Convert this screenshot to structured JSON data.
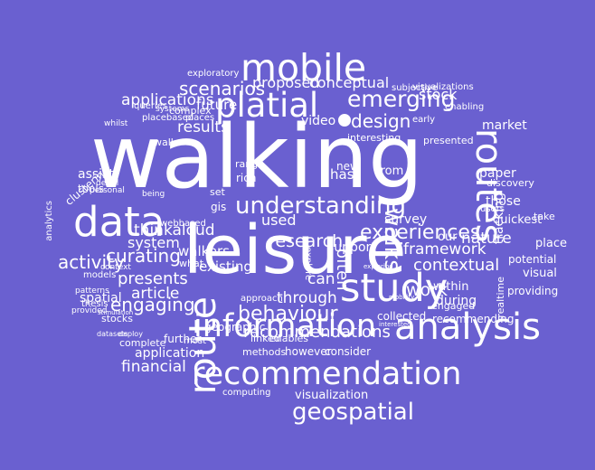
{
  "background_color": "#6a60d0",
  "text_color": "#ffffff",
  "words": [
    "walking",
    "leisure",
    "mobile",
    "platial",
    "data",
    "information",
    "analysis",
    "recommendation",
    "route",
    "study",
    "routes",
    "understanding",
    "scenarios",
    "emerging",
    "walks",
    "geospatial",
    "applications",
    "results",
    "proposed",
    "conceptual",
    "design",
    "experiences",
    "framework",
    "behaviour",
    "recommendations",
    "through",
    "research",
    "curating",
    "activity",
    "engaging",
    "system",
    "presents",
    "article",
    "thinkaloud",
    "contextual",
    "nature",
    "work",
    "stock",
    "visualization",
    "financial",
    "application",
    "existing",
    "walkers",
    "often",
    "used",
    "support",
    "can",
    "survey",
    "future",
    "tracking",
    "market",
    "place",
    "quickest",
    "spatial",
    "potential",
    "visual",
    "providing",
    "assist",
    "tools",
    "paper",
    "video",
    "interesting",
    "within",
    "during",
    "those",
    "our",
    "new",
    "has",
    "from",
    "further",
    "complete",
    "range",
    "geographic",
    "stocks",
    "enables",
    "however",
    "consider",
    "linked",
    "methods",
    "computing",
    "collected",
    "recommending",
    "engaged",
    "realtime",
    "clustering",
    "analytics",
    "complex",
    "placebased",
    "places",
    "explore",
    "webbased",
    "walk",
    "rich",
    "gis",
    "set",
    "what",
    "most",
    "approach",
    "subjective",
    "visualizations",
    "enabling",
    "presented",
    "early",
    "discovery",
    "users",
    "take",
    "exploratory",
    "queries",
    "systems",
    "models",
    "patterns",
    "thesis",
    "context",
    "detail",
    "personal",
    "being",
    "whilst",
    "provided",
    "datasets",
    "deploy",
    "stimulation",
    "exploring",
    "interested",
    "mobility"
  ]
}
